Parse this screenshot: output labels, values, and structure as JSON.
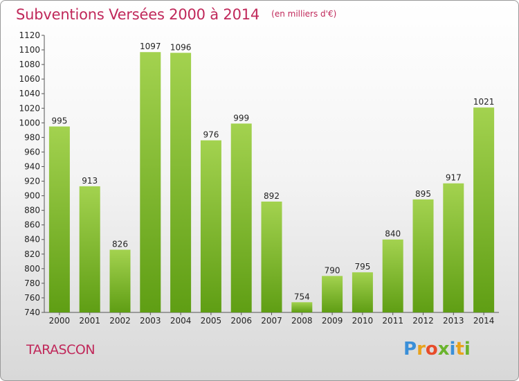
{
  "title": "Subventions Versées 2000 à 2014",
  "subtitle": "(en milliers d'€)",
  "commune": "TARASCON",
  "logo": {
    "letters": [
      "P",
      "r",
      "o",
      "x",
      "i",
      "t",
      "i"
    ],
    "colors": [
      "#3a8fd8",
      "#e8a21c",
      "#e84c2a",
      "#6ab42c",
      "#3a8fd8",
      "#e8a21c",
      "#6ab42c"
    ]
  },
  "colors": {
    "bar_top": "#a3d24f",
    "bar_bottom": "#5f9e14",
    "title": "#c0285a"
  },
  "chart_data": {
    "type": "bar",
    "categories": [
      "2000",
      "2001",
      "2002",
      "2003",
      "2004",
      "2005",
      "2006",
      "2007",
      "2008",
      "2009",
      "2010",
      "2011",
      "2012",
      "2013",
      "2014"
    ],
    "values": [
      995,
      913,
      826,
      1097,
      1096,
      976,
      999,
      892,
      754,
      790,
      795,
      840,
      895,
      917,
      1021
    ],
    "ylim": [
      740,
      1120
    ],
    "yticks": [
      740,
      760,
      780,
      800,
      820,
      840,
      860,
      880,
      900,
      920,
      940,
      960,
      980,
      1000,
      1020,
      1040,
      1060,
      1080,
      1100,
      1120
    ],
    "grid": false
  }
}
